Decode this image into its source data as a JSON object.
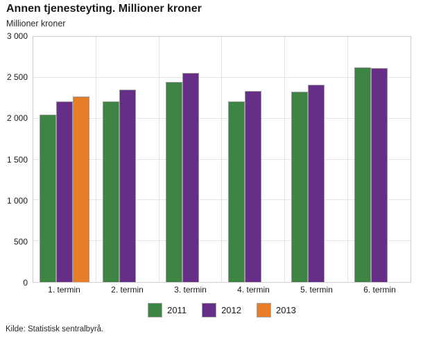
{
  "header": {
    "title": "Annen tjenesteyting. Millioner kroner",
    "subtitle": "Millioner kroner"
  },
  "source": "Kilde: Statistisk sentralbyrå.",
  "colors": {
    "series_2011": "#3e8543",
    "series_2012": "#662e86",
    "series_2013": "#e87d28",
    "bar_border": "#999999",
    "gridline": "#e4e4e4",
    "plot_border": "#cccccc"
  },
  "chart_data": {
    "type": "bar",
    "title": "Annen tjenesteyting. Millioner kroner",
    "ylabel": "Millioner kroner",
    "xlabel": "",
    "categories": [
      "1. termin",
      "2. termin",
      "3. termin",
      "4. termin",
      "5. termin",
      "6. termin"
    ],
    "series": [
      {
        "name": "2011",
        "color": "#3e8543",
        "values": [
          2050,
          2210,
          2450,
          2210,
          2330,
          2630
        ]
      },
      {
        "name": "2012",
        "color": "#662e86",
        "values": [
          2210,
          2350,
          2560,
          2340,
          2410,
          2620
        ]
      },
      {
        "name": "2013",
        "color": "#e87d28",
        "values": [
          2270,
          null,
          null,
          null,
          null,
          null
        ]
      }
    ],
    "ylim": [
      0,
      3000
    ],
    "ytick_step": 500,
    "ytick_labels": [
      "3 000",
      "2 500",
      "2 000",
      "1 500",
      "1 000",
      "500",
      "0"
    ],
    "grid": true,
    "legend_position": "bottom"
  }
}
